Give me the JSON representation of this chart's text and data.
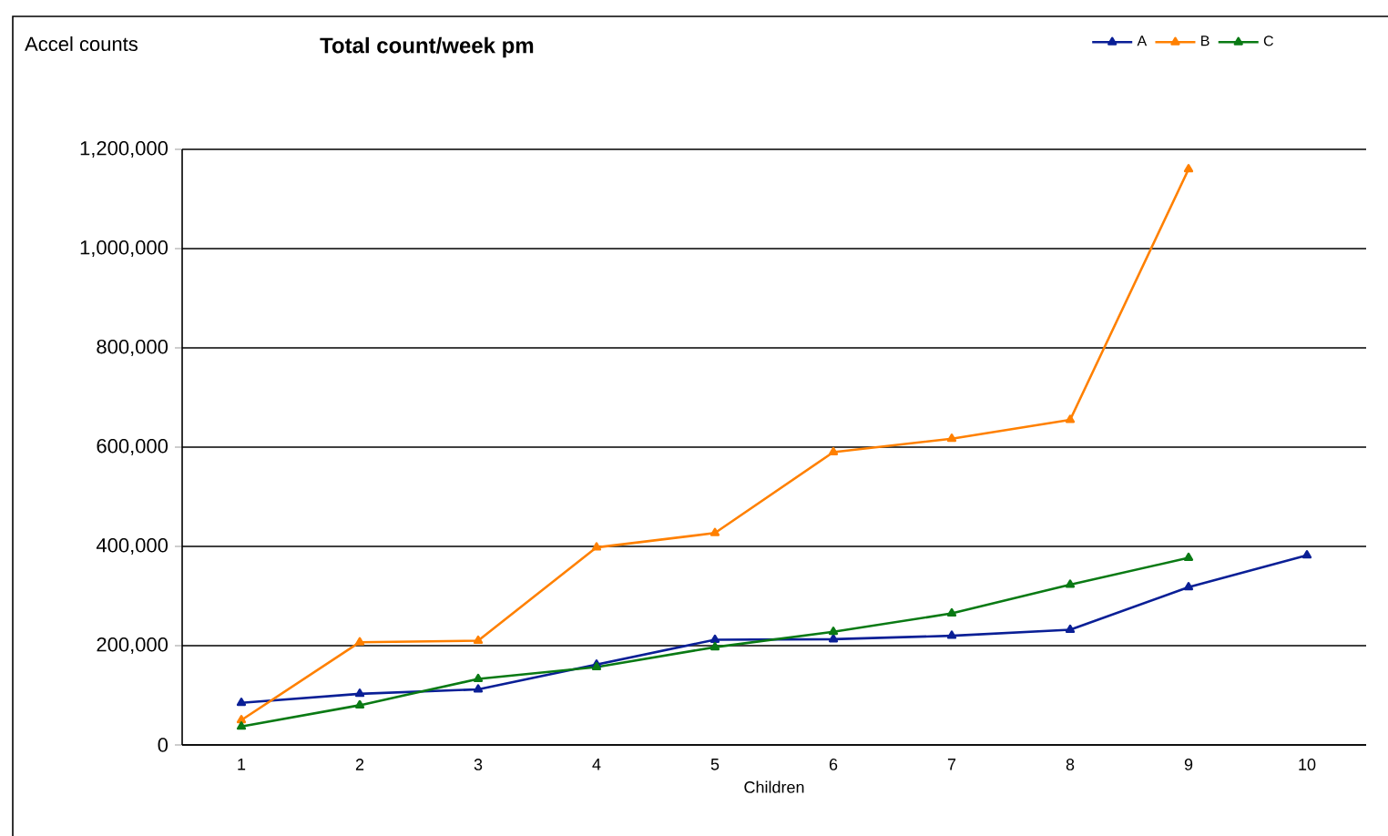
{
  "chart_data": {
    "type": "line",
    "title": "**Total count/week pm**",
    "xlabel": "Children",
    "ylabel": "Accel counts",
    "categories": [
      "1",
      "2",
      "3",
      "4",
      "5",
      "6",
      "7",
      "8",
      "9",
      "10"
    ],
    "series": [
      {
        "name": "A",
        "color": "#0a1f96",
        "values": [
          85000,
          103000,
          112000,
          162000,
          212000,
          213000,
          220000,
          232000,
          318000,
          382000
        ]
      },
      {
        "name": "B",
        "color": "#ff8000",
        "values": [
          50000,
          207000,
          210000,
          398000,
          427000,
          590000,
          617000,
          655000,
          1160000,
          null
        ]
      },
      {
        "name": "C",
        "color": "#0a7a14",
        "values": [
          37000,
          80000,
          133000,
          157000,
          197000,
          228000,
          265000,
          323000,
          377000,
          null
        ]
      }
    ],
    "ylim": [
      0,
      1200000
    ],
    "yticks": [
      {
        "value": 0,
        "label": "0"
      },
      {
        "value": 200000,
        "label": "200,000"
      },
      {
        "value": 400000,
        "label": "400,000"
      },
      {
        "value": 600000,
        "label": "600,000"
      },
      {
        "value": 800000,
        "label": "800,000"
      },
      {
        "value": 1000000,
        "label": "1,000,000"
      },
      {
        "value": 1200000,
        "label": "1,200,000"
      }
    ],
    "grid": "y",
    "legend": "top right",
    "marker": "triangle",
    "line_style": "solid"
  }
}
